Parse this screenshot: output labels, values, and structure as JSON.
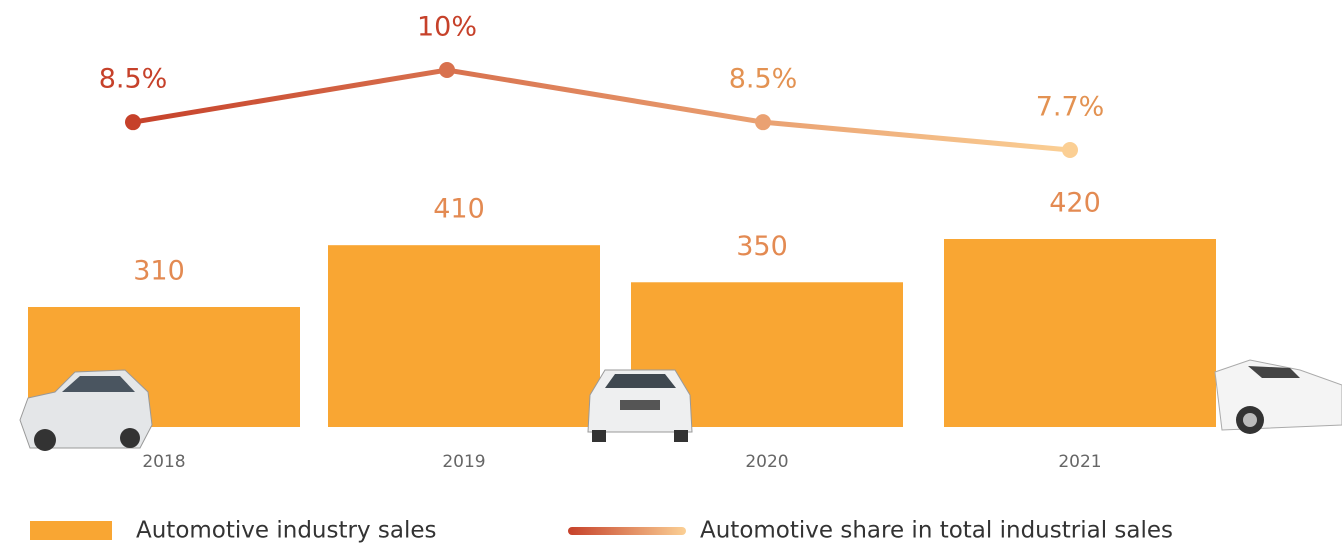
{
  "chart_data": {
    "type": "combo",
    "categories": [
      "2018",
      "2019",
      "2020",
      "2021"
    ],
    "series": [
      {
        "name": "Automotive industry sales",
        "type": "bar",
        "color": "#f9a633",
        "values": [
          310,
          410,
          350,
          420
        ]
      },
      {
        "name": "Automotive share in total industrial sales",
        "type": "line",
        "color": [
          "#c6412a",
          "#fbd095"
        ],
        "values": [
          8.5,
          10,
          8.5,
          7.7
        ],
        "value_labels": [
          "8.5%",
          "10%",
          "8.5%",
          "7.7%"
        ]
      }
    ]
  }
}
